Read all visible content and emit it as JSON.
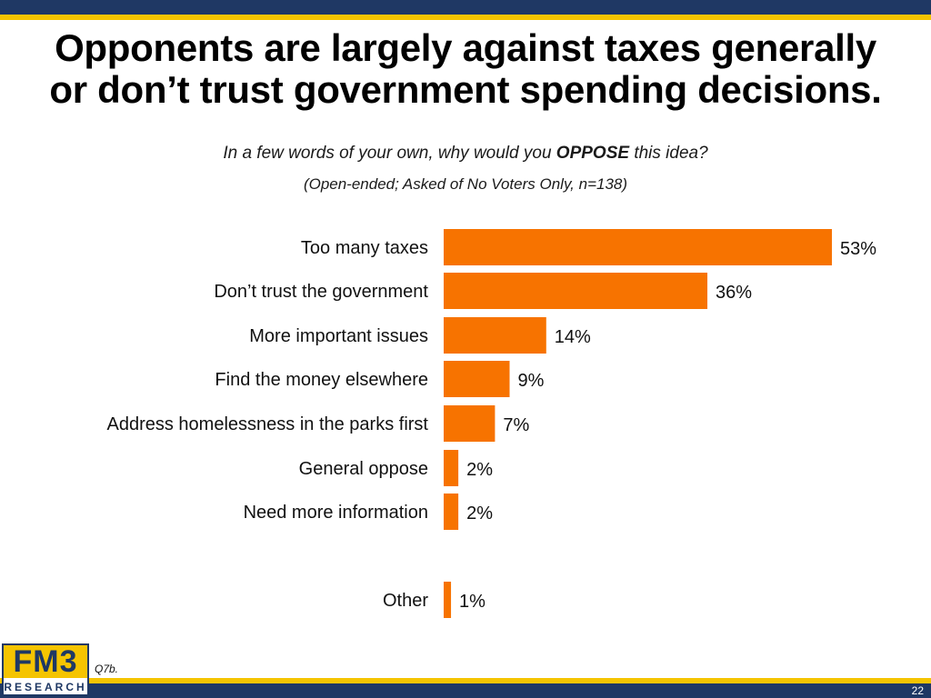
{
  "header": {
    "title_line1": "Opponents are largely against taxes generally",
    "title_line2": "or don’t trust government spending decisions."
  },
  "question": {
    "prefix": "In a few words of your own, why would you ",
    "emphasis": "OPPOSE",
    "suffix": " this idea?",
    "note": "(Open-ended; Asked of No Voters Only, n=138)"
  },
  "colors": {
    "bar": "#f77300",
    "brand_navy": "#1f3864",
    "brand_yellow": "#f5c400"
  },
  "chart_data": {
    "type": "bar",
    "orientation": "horizontal",
    "categories": [
      "Too many taxes",
      "Don’t trust the government",
      "More important issues",
      "Find the money elsewhere",
      "Address homelessness in the parks first",
      "General oppose",
      "Need more information",
      "Other"
    ],
    "values": [
      53,
      36,
      14,
      9,
      7,
      2,
      2,
      1
    ],
    "value_labels": [
      "53%",
      "36%",
      "14%",
      "9%",
      "7%",
      "2%",
      "2%",
      "1%"
    ],
    "xlim": [
      0,
      53
    ],
    "grid": false,
    "legend": "none"
  },
  "footer": {
    "logo_top": "FM3",
    "logo_bottom": "RESEARCH",
    "question_ref": "Q7b.",
    "page_number": "22"
  }
}
